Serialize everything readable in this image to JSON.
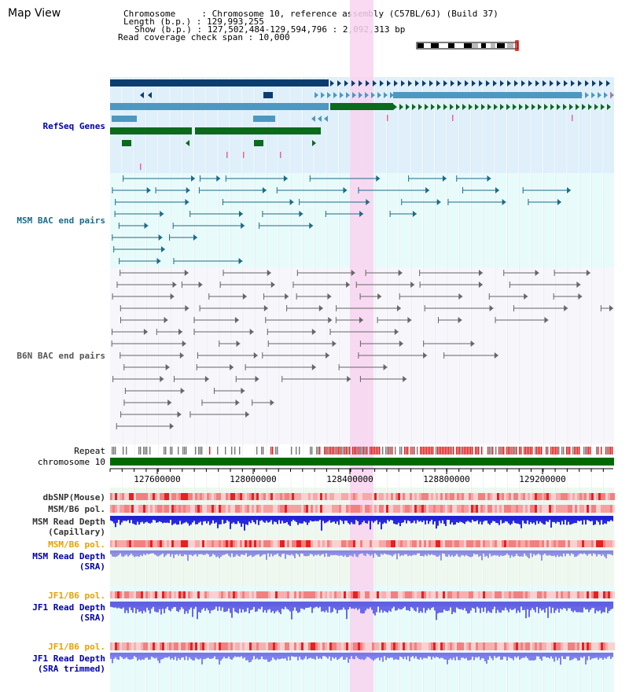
{
  "title": "Map View",
  "info": {
    "chromosome_label": "Chromosome",
    "chromosome_value": "Chromosome 10, reference assembly (C57BL/6J) (Build 37)",
    "length_label": "Length (b.p.)",
    "length_value": "129,993,255",
    "show_label": "Show (b.p.)",
    "show_value": "127,502,484-129,594,796 : 2,092,313 bp",
    "coverage_label": "Read coverage check span",
    "coverage_value": "10,000"
  },
  "tracks": {
    "refseq": "RefSeq Genes",
    "msm_bac": "MSM BAC end pairs",
    "b6n_bac": "B6N BAC end pairs",
    "repeat": "Repeat",
    "chromosome": "chromosome 10",
    "dbsnp": "dbSNP(Mouse)",
    "msm_b6_pol_1": "MSM/B6 pol.",
    "msm_read_depth_cap_1": "MSM Read Depth",
    "msm_read_depth_cap_2": "(Capillary)",
    "msm_b6_pol_2": "MSM/B6 pol.",
    "msm_read_depth_sra_1": "MSM Read Depth",
    "msm_read_depth_sra_2": "(SRA)",
    "jf1_b6_pol_1": "JF1/B6 pol.",
    "jf1_read_depth_sra_1": "JF1 Read Depth",
    "jf1_read_depth_sra_2": "(SRA)",
    "jf1_b6_pol_2": "JF1/B6 pol.",
    "jf1_read_depth_trim_1": "JF1 Read Depth",
    "jf1_read_depth_trim_2": "(SRA trimmed)"
  },
  "axis": {
    "ticks": [
      "127600000",
      "128000000",
      "128400000",
      "128800000",
      "129200000"
    ]
  },
  "colors": {
    "refseq_bg": "#dff0fb",
    "bac_bg": "#e8fbfb",
    "b6n_bg": "#f6f6fb",
    "highlight": "#f8d4f0",
    "dark_blue": "#0d3d6e",
    "mid_blue": "#4d98c0",
    "green": "#0b6a1c",
    "chromosome_green": "#006a00",
    "teal": "#1d6b86",
    "gray": "#666666",
    "label_gray": "#333333",
    "label_blue": "#0000aa",
    "label_orange": "#e8a000",
    "label_teal": "#1d6b86"
  }
}
